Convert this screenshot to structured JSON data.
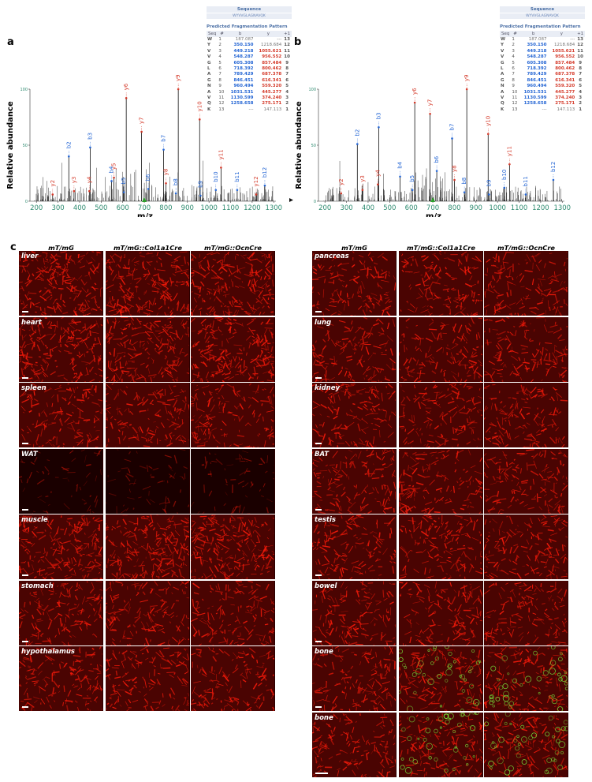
{
  "panel_a_label": "a",
  "panel_b_label": "b",
  "panel_c_label": "c",
  "table": {
    "sequence_title": "Sequence",
    "sequence": "WYVVGLAGNAVQK",
    "pattern_title": "Predicted Fragmentation Pattern",
    "headers": [
      "Seq",
      "#",
      "b",
      "y",
      "+1"
    ],
    "rows": [
      [
        "W",
        "1",
        "187.087",
        "---",
        "13"
      ],
      [
        "Y",
        "2",
        "350.150",
        "1218.684",
        "12"
      ],
      [
        "V",
        "3",
        "449.218",
        "1055.621",
        "11"
      ],
      [
        "V",
        "4",
        "548.287",
        "956.552",
        "10"
      ],
      [
        "G",
        "5",
        "605.308",
        "857.484",
        "9"
      ],
      [
        "L",
        "6",
        "718.392",
        "800.462",
        "8"
      ],
      [
        "A",
        "7",
        "789.429",
        "687.378",
        "7"
      ],
      [
        "G",
        "8",
        "846.451",
        "616.341",
        "6"
      ],
      [
        "N",
        "9",
        "960.494",
        "559.320",
        "5"
      ],
      [
        "A",
        "10",
        "1031.531",
        "445.277",
        "4"
      ],
      [
        "V",
        "11",
        "1130.599",
        "374.240",
        "3"
      ],
      [
        "Q",
        "12",
        "1258.658",
        "275.171",
        "2"
      ],
      [
        "K",
        "13",
        "---",
        "147.113",
        "1"
      ]
    ]
  },
  "chart_data": [
    {
      "type": "bar",
      "panel": "a",
      "xlabel": "m/z",
      "ylabel": "Relative abundance",
      "xlim": [
        170,
        1310
      ],
      "ylim": [
        0,
        100
      ],
      "xticks": [
        200,
        300,
        400,
        500,
        600,
        700,
        800,
        900,
        1000,
        1100,
        1200,
        1300
      ],
      "yticks": [
        0,
        50,
        100
      ],
      "precursor_mz": 700,
      "ions": [
        {
          "label": "y2",
          "mz": 275.171,
          "intensity": 6,
          "kind": "y"
        },
        {
          "label": "b2",
          "mz": 350.15,
          "intensity": 40,
          "kind": "b"
        },
        {
          "label": "y3",
          "mz": 374.24,
          "intensity": 9,
          "kind": "y"
        },
        {
          "label": "b3",
          "mz": 449.218,
          "intensity": 48,
          "kind": "b"
        },
        {
          "label": "y4",
          "mz": 445.277,
          "intensity": 9,
          "kind": "y"
        },
        {
          "label": "b4",
          "mz": 548.287,
          "intensity": 18,
          "kind": "b"
        },
        {
          "label": "y5",
          "mz": 559.32,
          "intensity": 21,
          "kind": "y"
        },
        {
          "label": "b5",
          "mz": 605.308,
          "intensity": 8,
          "kind": "b"
        },
        {
          "label": "y6",
          "mz": 616.341,
          "intensity": 92,
          "kind": "y"
        },
        {
          "label": "y7",
          "mz": 687.378,
          "intensity": 62,
          "kind": "y"
        },
        {
          "label": "b6",
          "mz": 718.392,
          "intensity": 11,
          "kind": "b"
        },
        {
          "label": "b7",
          "mz": 789.429,
          "intensity": 46,
          "kind": "b"
        },
        {
          "label": "y8",
          "mz": 800.462,
          "intensity": 16,
          "kind": "y"
        },
        {
          "label": "b8",
          "mz": 846.451,
          "intensity": 7,
          "kind": "b"
        },
        {
          "label": "y9",
          "mz": 857.484,
          "intensity": 100,
          "kind": "y"
        },
        {
          "label": "y10",
          "mz": 956.552,
          "intensity": 73,
          "kind": "y"
        },
        {
          "label": "b9",
          "mz": 960.494,
          "intensity": 5,
          "kind": "b"
        },
        {
          "label": "b10",
          "mz": 1031.531,
          "intensity": 10,
          "kind": "b"
        },
        {
          "label": "y11",
          "mz": 1055.621,
          "intensity": 30,
          "kind": "y"
        },
        {
          "label": "b11",
          "mz": 1130.599,
          "intensity": 10,
          "kind": "b"
        },
        {
          "label": "y12",
          "mz": 1218.684,
          "intensity": 6,
          "kind": "y"
        },
        {
          "label": "b12",
          "mz": 1258.658,
          "intensity": 14,
          "kind": "b"
        }
      ]
    },
    {
      "type": "bar",
      "panel": "b",
      "xlabel": "m/z",
      "ylabel": "Relative abundance",
      "xlim": [
        170,
        1310
      ],
      "ylim": [
        0,
        100
      ],
      "xticks": [
        200,
        300,
        400,
        500,
        600,
        700,
        800,
        900,
        1000,
        1100,
        1200,
        1300
      ],
      "yticks": [
        0,
        50,
        100
      ],
      "precursor_mz": 700,
      "ions": [
        {
          "label": "y2",
          "mz": 275.171,
          "intensity": 7,
          "kind": "y"
        },
        {
          "label": "b2",
          "mz": 350.15,
          "intensity": 51,
          "kind": "b"
        },
        {
          "label": "y3",
          "mz": 374.24,
          "intensity": 10,
          "kind": "y"
        },
        {
          "label": "b3",
          "mz": 449.218,
          "intensity": 66,
          "kind": "b"
        },
        {
          "label": "y4",
          "mz": 445.277,
          "intensity": 15,
          "kind": "y"
        },
        {
          "label": "b4",
          "mz": 548.287,
          "intensity": 22,
          "kind": "b"
        },
        {
          "label": "b5",
          "mz": 605.308,
          "intensity": 10,
          "kind": "b"
        },
        {
          "label": "y6",
          "mz": 616.341,
          "intensity": 88,
          "kind": "y"
        },
        {
          "label": "y7",
          "mz": 687.378,
          "intensity": 78,
          "kind": "y"
        },
        {
          "label": "b6",
          "mz": 718.392,
          "intensity": 27,
          "kind": "b"
        },
        {
          "label": "b7",
          "mz": 789.429,
          "intensity": 56,
          "kind": "b"
        },
        {
          "label": "y8",
          "mz": 800.462,
          "intensity": 19,
          "kind": "y"
        },
        {
          "label": "b8",
          "mz": 846.451,
          "intensity": 8,
          "kind": "b"
        },
        {
          "label": "y9",
          "mz": 857.484,
          "intensity": 100,
          "kind": "y"
        },
        {
          "label": "y10",
          "mz": 956.552,
          "intensity": 60,
          "kind": "y"
        },
        {
          "label": "b9",
          "mz": 960.494,
          "intensity": 6,
          "kind": "b"
        },
        {
          "label": "b10",
          "mz": 1031.531,
          "intensity": 12,
          "kind": "b"
        },
        {
          "label": "y11",
          "mz": 1055.621,
          "intensity": 33,
          "kind": "y"
        },
        {
          "label": "b11",
          "mz": 1130.599,
          "intensity": 6,
          "kind": "b"
        },
        {
          "label": "b12",
          "mz": 1258.658,
          "intensity": 19,
          "kind": "b"
        }
      ]
    }
  ],
  "colors": {
    "b_ion": "#2566d4",
    "y_ion": "#d43a2a",
    "axis_tick": "#2e8b70",
    "precursor": "#2ca02c",
    "tissue": "#e0140a"
  },
  "grid_left": {
    "columns": [
      "mT/mG",
      "mT/mG::Col1a1Cre",
      "mT/mG::OcnCre"
    ],
    "rows": [
      "liver",
      "heart",
      "spleen",
      "WAT",
      "muscle",
      "stomach",
      "hypothalamus"
    ]
  },
  "grid_right": {
    "columns": [
      "mT/mG",
      "mT/mG::Col1a1Cre",
      "mT/mG::OcnCre"
    ],
    "rows": [
      "pancreas",
      "lung",
      "kidney",
      "BAT",
      "testis",
      "bowel",
      "bone",
      "bone"
    ]
  }
}
